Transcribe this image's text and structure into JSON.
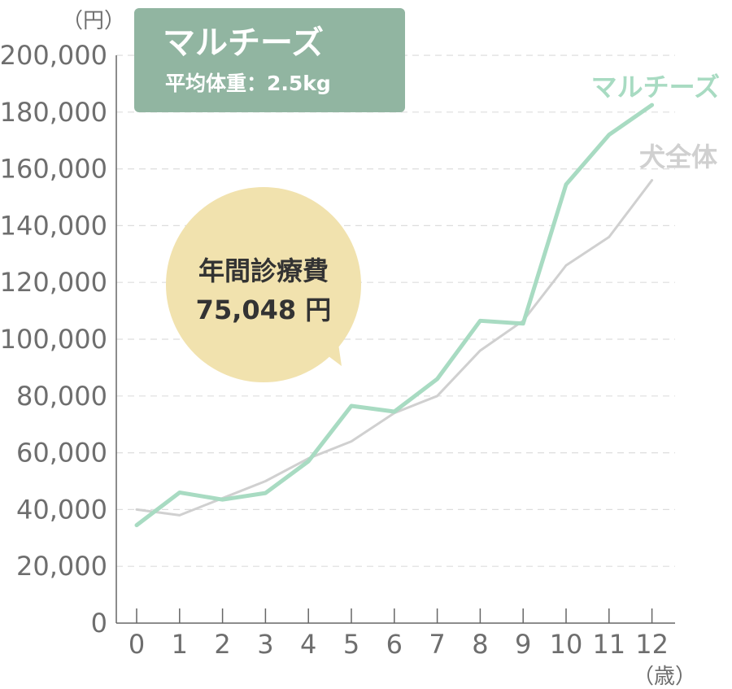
{
  "header": {
    "breed": "マルチーズ",
    "subtitle": "平均体重：2.5kg"
  },
  "bubble": {
    "line1": "年間診療費",
    "line2": "75,048 円"
  },
  "colors": {
    "maltese": "#a8dbc2",
    "all_dogs": "#d0d0d0",
    "title_box": "#91b5a1",
    "bubble": "#f1e2ae",
    "axis": "#666666",
    "grid": "#dddddd"
  },
  "chart_data": {
    "type": "line",
    "ylabel": "（円）",
    "xlabel": "（歳）",
    "ylim": [
      0,
      200000
    ],
    "yticks": [
      0,
      20000,
      40000,
      60000,
      80000,
      100000,
      120000,
      140000,
      160000,
      180000,
      200000
    ],
    "ytick_labels": [
      "0",
      "20,000",
      "40,000",
      "60,000",
      "80,000",
      "100,000",
      "120,000",
      "140,000",
      "160,000",
      "180,000",
      "200,000"
    ],
    "x": [
      "0",
      "1",
      "2",
      "3",
      "4",
      "5",
      "6",
      "7",
      "8",
      "9",
      "10",
      "11",
      "12"
    ],
    "grid": "horizontal-dashed",
    "series": [
      {
        "name": "マルチーズ",
        "color": "#a8dbc2",
        "values": [
          34500,
          46000,
          43500,
          45800,
          57000,
          76500,
          74500,
          86000,
          106500,
          105500,
          154500,
          172000,
          182500
        ]
      },
      {
        "name": "犬全体",
        "color": "#d0d0d0",
        "values": [
          40000,
          38000,
          44000,
          50000,
          58000,
          64000,
          74000,
          80000,
          96000,
          106500,
          126000,
          136000,
          156000
        ]
      }
    ]
  }
}
